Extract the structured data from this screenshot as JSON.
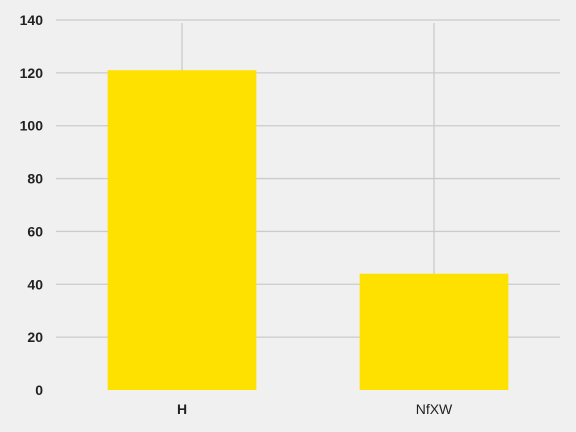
{
  "chart_data": {
    "type": "bar",
    "categories": [
      "H",
      "NfXW"
    ],
    "values": [
      121,
      44
    ],
    "title": "",
    "xlabel": "",
    "ylabel": "",
    "ylim": [
      0,
      140
    ],
    "yticks": [
      0,
      20,
      40,
      60,
      80,
      100,
      120,
      140
    ],
    "grid": true,
    "legend": "none",
    "colors": {
      "bar": "#ffe100",
      "background": "#f0f0f0",
      "grid": "#cbcbcb",
      "text": "#222222"
    }
  }
}
